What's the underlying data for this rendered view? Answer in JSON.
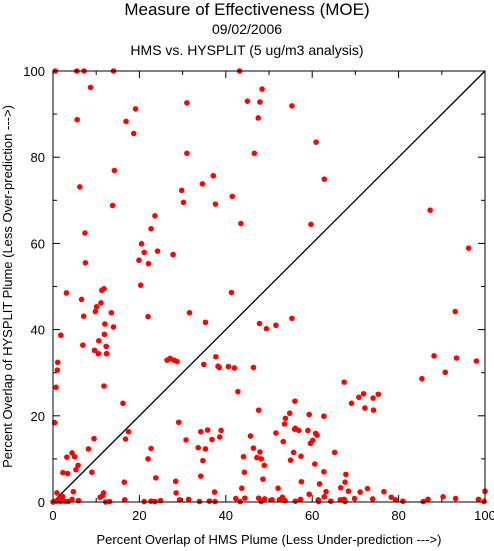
{
  "chart_data": {
    "type": "scatter",
    "title": "Measure of Effectiveness (MOE)",
    "subtitle": "09/02/2006",
    "subtitle2": "HMS vs. HYSPLIT  (5 ug/m3 analysis)",
    "xlabel": "Percent Overlap of HMS Plume (Less Under-prediction --->)",
    "ylabel": "Percent Overlap of HYSPLIT Plume (Less Over-prediction --->)",
    "xlim": [
      0,
      100
    ],
    "ylim": [
      0,
      100
    ],
    "xticks": [
      "0",
      "20",
      "40",
      "60",
      "80",
      "100"
    ],
    "yticks": [
      "0",
      "20",
      "40",
      "60",
      "80",
      "100"
    ],
    "grid": false,
    "point_color": "#ff0000",
    "line_color": "#000000",
    "reference_line": {
      "from": [
        0,
        0
      ],
      "to": [
        100,
        100
      ]
    },
    "series": [
      {
        "points": [
          [
            0.5,
            100
          ],
          [
            5.5,
            100
          ],
          [
            7.2,
            100
          ],
          [
            14,
            100
          ],
          [
            43.2,
            100
          ],
          [
            8.7,
            96.2
          ],
          [
            48.4,
            95.8
          ],
          [
            45,
            93
          ],
          [
            47.9,
            92.8
          ],
          [
            31,
            92.6
          ],
          [
            55.3,
            91.9
          ],
          [
            19.1,
            91.2
          ],
          [
            47.5,
            89.1
          ],
          [
            5.6,
            88.7
          ],
          [
            16.9,
            88.3
          ],
          [
            18.7,
            85.5
          ],
          [
            60.9,
            83.5
          ],
          [
            46.6,
            80.9
          ],
          [
            31,
            80.9
          ],
          [
            14.2,
            76.9
          ],
          [
            37.1,
            75.7
          ],
          [
            62.8,
            74.9
          ],
          [
            34.6,
            73.8
          ],
          [
            6.2,
            73.1
          ],
          [
            29.8,
            72.3
          ],
          [
            41.5,
            70.9
          ],
          [
            30.2,
            69.5
          ],
          [
            37.6,
            69.1
          ],
          [
            13.8,
            68.8
          ],
          [
            87.3,
            67.7
          ],
          [
            23.6,
            66.4
          ],
          [
            43.5,
            64.6
          ],
          [
            59.7,
            64.4
          ],
          [
            22.7,
            63.4
          ],
          [
            7.4,
            62.4
          ],
          [
            20.5,
            59.9
          ],
          [
            96.2,
            58.9
          ],
          [
            24.2,
            58.2
          ],
          [
            21.1,
            57.9
          ],
          [
            27.8,
            57.4
          ],
          [
            19.9,
            56.1
          ],
          [
            22.1,
            55.3
          ],
          [
            7.5,
            55.5
          ],
          [
            20.3,
            50.3
          ],
          [
            11.8,
            49.5
          ],
          [
            11.3,
            49.1
          ],
          [
            41.3,
            48.6
          ],
          [
            3.1,
            48.5
          ],
          [
            11.1,
            46.2
          ],
          [
            6.6,
            47
          ],
          [
            10.1,
            45.3
          ],
          [
            9.8,
            44.2
          ],
          [
            31.6,
            43.9
          ],
          [
            93.1,
            44.2
          ],
          [
            7.1,
            43.1
          ],
          [
            13.5,
            43.9
          ],
          [
            12,
            41.3
          ],
          [
            22,
            43
          ],
          [
            55.3,
            42.6
          ],
          [
            35.3,
            41.7
          ],
          [
            47.8,
            41.4
          ],
          [
            51.6,
            41
          ],
          [
            14,
            40.6
          ],
          [
            49.4,
            40.2
          ],
          [
            11.9,
            38.9
          ],
          [
            1.8,
            38.7
          ],
          [
            10.6,
            37.4
          ],
          [
            6.9,
            36.4
          ],
          [
            12.3,
            36.1
          ],
          [
            9.6,
            35.2
          ],
          [
            10.5,
            34.4
          ],
          [
            12.4,
            34.4
          ],
          [
            88.2,
            33.9
          ],
          [
            93.4,
            33.4
          ],
          [
            37.7,
            33.7
          ],
          [
            27.1,
            33.3
          ],
          [
            26.4,
            32.9
          ],
          [
            28,
            32.9
          ],
          [
            28.7,
            32.6
          ],
          [
            98,
            32.7
          ],
          [
            1.1,
            32.4
          ],
          [
            34.9,
            31.9
          ],
          [
            40.6,
            31.4
          ],
          [
            38.2,
            31.5
          ],
          [
            38.5,
            31.2
          ],
          [
            42,
            31.1
          ],
          [
            46.4,
            31.2
          ],
          [
            1,
            30.6
          ],
          [
            90.8,
            30.1
          ],
          [
            85.4,
            28.6
          ],
          [
            67.4,
            27.8
          ],
          [
            11.8,
            26.9
          ],
          [
            0.7,
            26.6
          ],
          [
            42.8,
            25.6
          ],
          [
            71.9,
            25.1
          ],
          [
            75.3,
            25
          ],
          [
            70.8,
            24.3
          ],
          [
            74.1,
            24.1
          ],
          [
            16.2,
            22.9
          ],
          [
            56,
            23.4
          ],
          [
            69.1,
            22.9
          ],
          [
            72.2,
            21.8
          ],
          [
            47.6,
            21.3
          ],
          [
            74.2,
            21.3
          ],
          [
            54.8,
            20.6
          ],
          [
            59.3,
            20.3
          ],
          [
            62.7,
            19.9
          ],
          [
            53.8,
            19.4
          ],
          [
            0.4,
            18.4
          ],
          [
            29.1,
            18.5
          ],
          [
            53.6,
            18.1
          ],
          [
            56.1,
            17.1
          ],
          [
            55.9,
            16.9
          ],
          [
            38.9,
            16.6
          ],
          [
            35.8,
            16.7
          ],
          [
            56.9,
            16.6
          ],
          [
            59,
            16.6
          ],
          [
            34.2,
            16.3
          ],
          [
            17.5,
            16.3
          ],
          [
            51.6,
            16
          ],
          [
            60.8,
            15.9
          ],
          [
            61.1,
            15.5
          ],
          [
            45.7,
            15.3
          ],
          [
            38.6,
            15.1
          ],
          [
            9.5,
            14.7
          ],
          [
            30.8,
            14.4
          ],
          [
            36.8,
            14.5
          ],
          [
            16.8,
            14.6
          ],
          [
            60.1,
            14.3
          ],
          [
            53.3,
            14
          ],
          [
            59.6,
            13.6
          ],
          [
            33.6,
            12.6
          ],
          [
            46.4,
            12.5
          ],
          [
            35.3,
            12.3
          ],
          [
            22.7,
            12.4
          ],
          [
            8.2,
            12.3
          ],
          [
            47.9,
            11.6
          ],
          [
            55.7,
            11.5
          ],
          [
            4.4,
            11.4
          ],
          [
            65.2,
            11.5
          ],
          [
            57.4,
            10.6
          ],
          [
            47.2,
            10.3
          ],
          [
            44.1,
            10.5
          ],
          [
            3.2,
            10.4
          ],
          [
            5,
            10.5
          ],
          [
            48.2,
            10
          ],
          [
            22,
            10
          ],
          [
            34.7,
            9.6
          ],
          [
            55,
            9.7
          ],
          [
            5.8,
            8.5
          ],
          [
            60.6,
            8.8
          ],
          [
            48.9,
            8.5
          ],
          [
            5.3,
            7.5
          ],
          [
            9,
            6.9
          ],
          [
            2.3,
            6.8
          ],
          [
            3.4,
            6.6
          ],
          [
            44.3,
            6.9
          ],
          [
            62.7,
            7
          ],
          [
            67.8,
            6.4
          ],
          [
            34.2,
            6
          ],
          [
            23.8,
            5.6
          ],
          [
            28.4,
            4.8
          ],
          [
            48.6,
            5.3
          ],
          [
            16.5,
            4.6
          ],
          [
            67.6,
            4.6
          ],
          [
            57.5,
            4.7
          ],
          [
            61.7,
            4.2
          ],
          [
            72.8,
            3.1
          ],
          [
            43.7,
            3.2
          ],
          [
            66.6,
            3.3
          ],
          [
            52.1,
            3.2
          ],
          [
            37.4,
            2.3
          ],
          [
            71.1,
            2.3
          ],
          [
            100,
            2.5
          ],
          [
            0.9,
            2.1
          ],
          [
            11.7,
            2.1
          ],
          [
            4.7,
            2.4
          ],
          [
            28.5,
            2.1
          ],
          [
            63.2,
            2.4
          ],
          [
            68.4,
            2.5
          ],
          [
            76.6,
            2.4
          ],
          [
            11.5,
            1.5
          ],
          [
            2.2,
            1.3
          ],
          [
            10.9,
            1.1
          ],
          [
            53.1,
            1.1
          ],
          [
            59.3,
            1.8
          ],
          [
            62.8,
            1.2
          ],
          [
            78.3,
            1.1
          ],
          [
            90.3,
            1.2
          ],
          [
            1.4,
            0.8
          ],
          [
            4.4,
            0.6
          ],
          [
            16.6,
            0.5
          ],
          [
            29.3,
            0.5
          ],
          [
            31.4,
            0.6
          ],
          [
            42.3,
            0.8
          ],
          [
            44.4,
            0.9
          ],
          [
            47.6,
            0.9
          ],
          [
            49,
            0.7
          ],
          [
            50.7,
            0.5
          ],
          [
            52.4,
            0.5
          ],
          [
            57.3,
            0.6
          ],
          [
            61.4,
            0.5
          ],
          [
            66.5,
            0.5
          ],
          [
            67.4,
            0.6
          ],
          [
            69.8,
            0.8
          ],
          [
            74,
            0.7
          ],
          [
            79.3,
            0.5
          ],
          [
            86.8,
            0.6
          ],
          [
            93.2,
            0.8
          ],
          [
            98.5,
            0.6
          ],
          [
            0,
            0
          ],
          [
            0.3,
            0.1
          ],
          [
            0.8,
            0.2
          ],
          [
            1.2,
            0.3
          ],
          [
            1.7,
            0.1
          ],
          [
            2.6,
            0.2
          ],
          [
            3.5,
            0.1
          ],
          [
            5.9,
            0.3
          ],
          [
            12.2,
            0
          ],
          [
            13.1,
            0.1
          ],
          [
            21.1,
            0.1
          ],
          [
            22.7,
            0.2
          ],
          [
            23.6,
            0.1
          ],
          [
            24.9,
            0.3
          ],
          [
            33.9,
            0.1
          ],
          [
            36.2,
            0.2
          ],
          [
            37.5,
            0.1
          ],
          [
            43.3,
            0.1
          ],
          [
            48.2,
            0.1
          ],
          [
            53.7,
            0.3
          ],
          [
            56.1,
            0.2
          ],
          [
            61.5,
            0.1
          ],
          [
            64.3,
            0.2
          ],
          [
            67.6,
            0.1
          ],
          [
            81,
            0.2
          ],
          [
            85.7,
            0.1
          ],
          [
            99.8,
            0.1
          ]
        ]
      }
    ]
  }
}
